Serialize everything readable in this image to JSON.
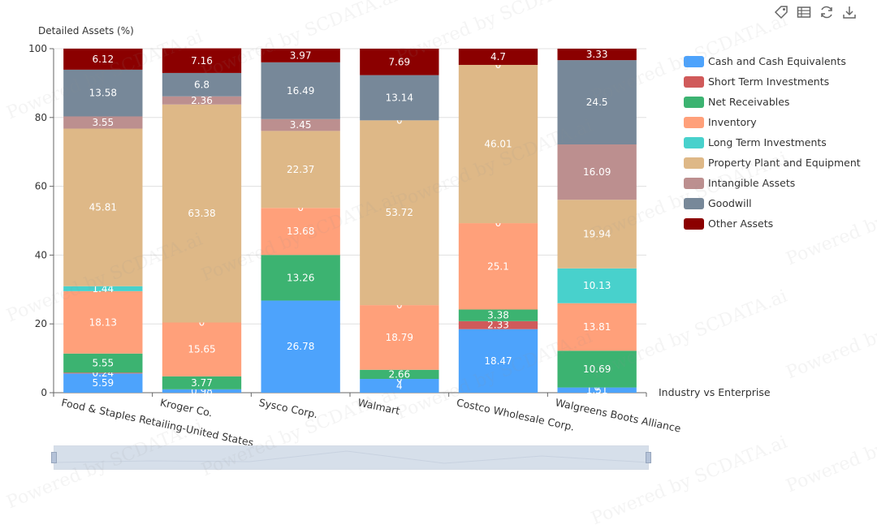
{
  "toolbar": {
    "icons": [
      "tag-icon",
      "data-view-icon",
      "refresh-icon",
      "download-icon"
    ]
  },
  "watermark_text": "Powered by SCDATA.ai",
  "chart_data": {
    "type": "bar",
    "stacked": true,
    "ylabel": "Detailed Assets (%)",
    "xlabel": "Industry vs Enterprise",
    "ylim": [
      0,
      100
    ],
    "yticks": [
      0,
      20,
      40,
      60,
      80,
      100
    ],
    "grid": true,
    "legend_position": "right",
    "categories": [
      "Food & Staples Retailing-United States",
      "Kroger Co.",
      "Sysco Corp.",
      "Walmart",
      "Costco Wholesale Corp.",
      "Walgreens Boots Alliance"
    ],
    "series": [
      {
        "name": "Cash and Cash Equivalents",
        "color": "#4da3fc",
        "values": [
          5.59,
          0.98,
          26.78,
          4,
          18.47,
          1.51
        ],
        "labels": [
          "5.59",
          "0.98",
          "26.78",
          "4",
          "18.47",
          "1.51"
        ]
      },
      {
        "name": "Short Term Investments",
        "color": "#d05a5a",
        "values": [
          0.24,
          0,
          0,
          0,
          2.33,
          0
        ],
        "labels": [
          "0.24",
          "",
          "",
          "0",
          "2.33",
          "0"
        ]
      },
      {
        "name": "Net Receivables",
        "color": "#3cb371",
        "values": [
          5.55,
          3.77,
          13.26,
          2.66,
          3.38,
          10.69
        ],
        "labels": [
          "5.55",
          "3.77",
          "13.26",
          "2.66",
          "3.38",
          "10.69"
        ]
      },
      {
        "name": "Inventory",
        "color": "#ffa07a",
        "values": [
          18.13,
          15.65,
          13.68,
          18.79,
          25.1,
          13.81
        ],
        "labels": [
          "18.13",
          "15.65",
          "13.68",
          "18.79",
          "25.1",
          "13.81"
        ]
      },
      {
        "name": "Long Term Investments",
        "color": "#48d1cc",
        "values": [
          1.44,
          0,
          0,
          0,
          0,
          10.13
        ],
        "labels": [
          "1.44",
          "0",
          "0",
          "0",
          "0",
          "10.13"
        ]
      },
      {
        "name": "Property Plant and Equipment",
        "color": "#deb887",
        "values": [
          45.81,
          63.38,
          22.37,
          53.72,
          46.01,
          19.94
        ],
        "labels": [
          "45.81",
          "63.38",
          "22.37",
          "53.72",
          "46.01",
          "19.94"
        ]
      },
      {
        "name": "Intangible Assets",
        "color": "#bc8f8f",
        "values": [
          3.55,
          2.36,
          3.45,
          0,
          0,
          16.09
        ],
        "labels": [
          "3.55",
          "2.36",
          "3.45",
          "0",
          "0",
          "16.09"
        ]
      },
      {
        "name": "Goodwill",
        "color": "#778899",
        "values": [
          13.58,
          6.8,
          16.49,
          13.14,
          0,
          24.5
        ],
        "labels": [
          "13.58",
          "6.8",
          "16.49",
          "13.14",
          "",
          "24.5"
        ]
      },
      {
        "name": "Other Assets",
        "color": "#8b0000",
        "values": [
          6.12,
          7.16,
          3.97,
          7.69,
          4.7,
          3.33
        ],
        "labels": [
          "6.12",
          "7.16",
          "3.97",
          "7.69",
          "4.7",
          "3.33"
        ]
      }
    ]
  }
}
